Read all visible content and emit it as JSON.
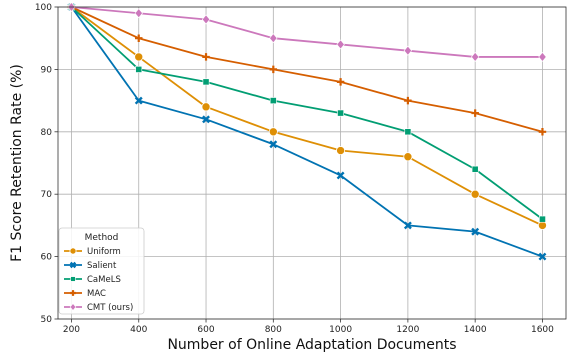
{
  "chart_data": {
    "type": "line",
    "xlabel": "Number of Online Adaptation Documents",
    "ylabel": "F1 Score Retention Rate (%)",
    "x": [
      200,
      400,
      600,
      800,
      1000,
      1200,
      1400,
      1600
    ],
    "xlim": [
      160,
      1670
    ],
    "ylim": [
      50,
      100
    ],
    "xticks": [
      200,
      400,
      600,
      800,
      1000,
      1200,
      1400,
      1600
    ],
    "yticks": [
      50,
      60,
      70,
      80,
      90,
      100
    ],
    "grid": true,
    "legend": {
      "title": "Method",
      "position": "lower-left"
    },
    "series": [
      {
        "name": "Uniform",
        "color": "#de8f05",
        "marker": "circle",
        "values": [
          100,
          92,
          84,
          80,
          77,
          76,
          70,
          65
        ]
      },
      {
        "name": "Salient",
        "color": "#0173b2",
        "marker": "x",
        "values": [
          100,
          85,
          82,
          78,
          73,
          65,
          64,
          60
        ]
      },
      {
        "name": "CaMeLS",
        "color": "#029e73",
        "marker": "square",
        "values": [
          100,
          90,
          88,
          85,
          83,
          80,
          74,
          66
        ]
      },
      {
        "name": "MAC",
        "color": "#d55e00",
        "marker": "plus",
        "values": [
          100,
          95,
          92,
          90,
          88,
          85,
          83,
          80
        ]
      },
      {
        "name": "CMT (ours)",
        "color": "#cc78bc",
        "marker": "diamond",
        "values": [
          100,
          99,
          98,
          95,
          94,
          93,
          92,
          92
        ]
      }
    ]
  }
}
